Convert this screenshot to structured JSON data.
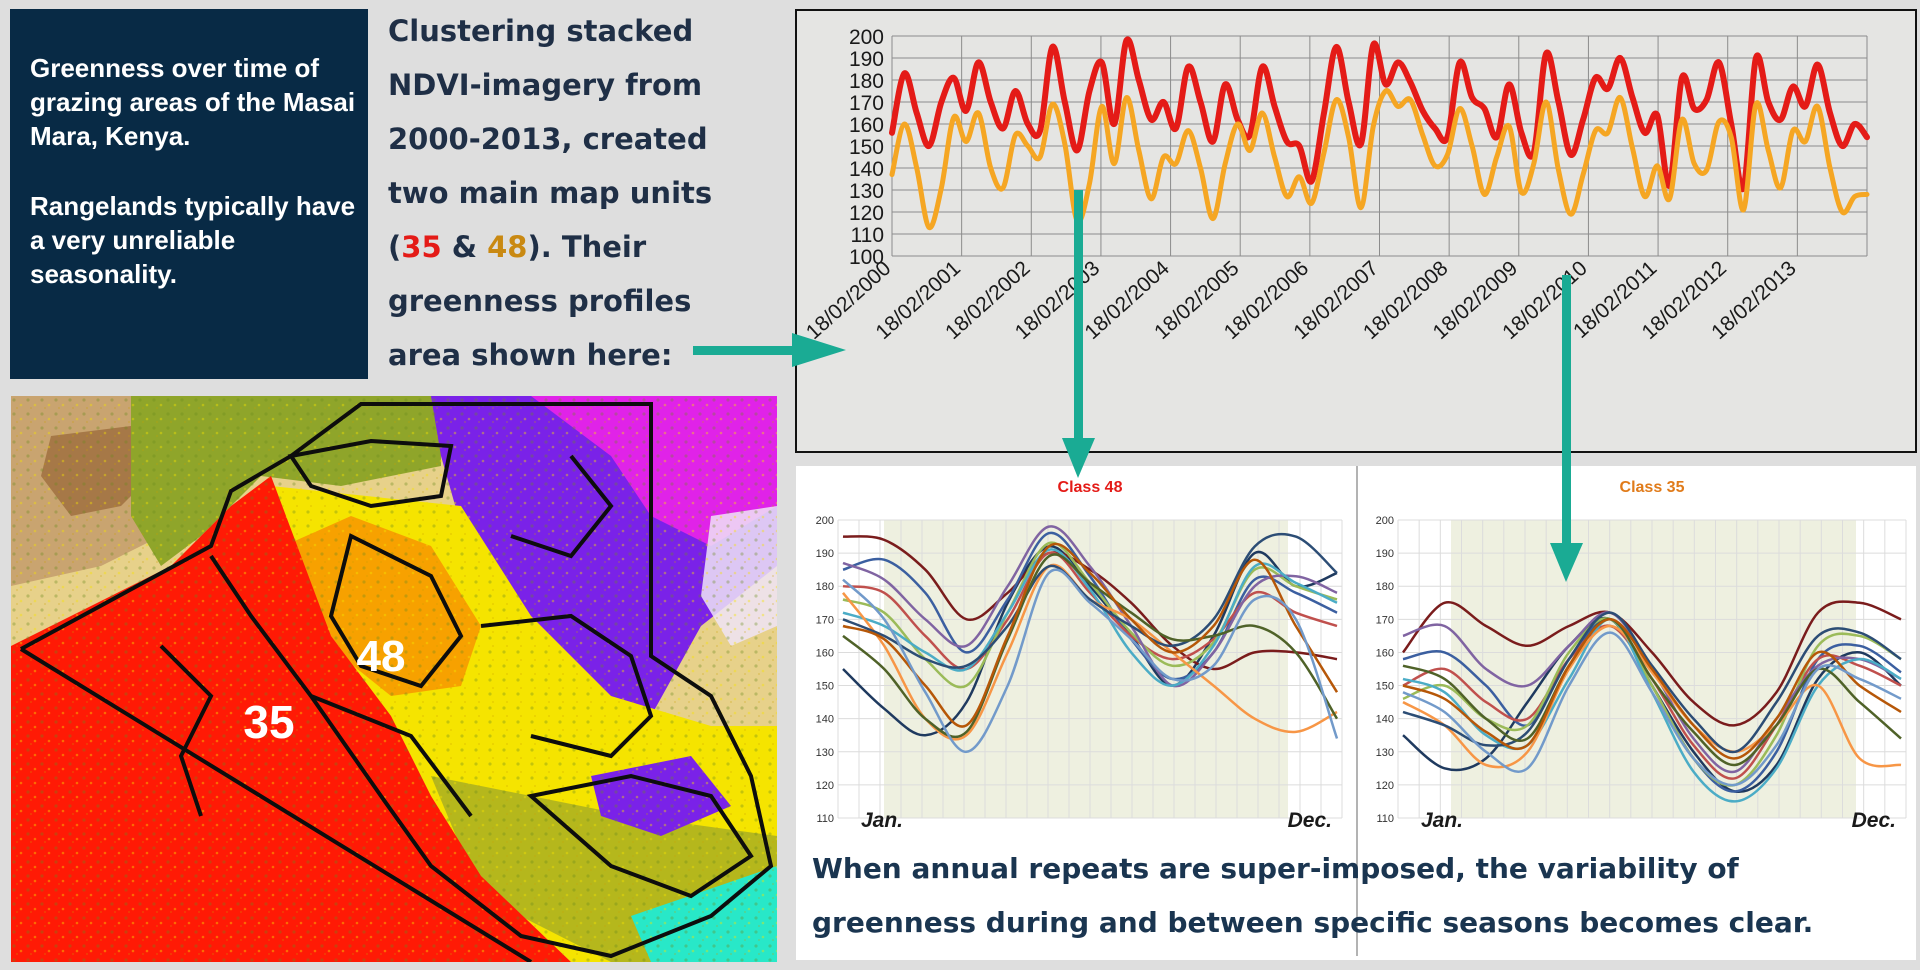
{
  "intro": {
    "paragraph1": "Greenness over time of grazing areas of the Masai Mara, Kenya.",
    "paragraph2": "Rangelands typically have a very unreliable seasonality."
  },
  "description": {
    "line1": "Clustering stacked",
    "line2": "NDVI-imagery from",
    "line3": "2000-2013, created",
    "line4": "two main map units",
    "open_paren": "(",
    "class_a": "35",
    "amp": " & ",
    "class_b": "48",
    "tail": "). Their",
    "line6": "greenness profiles",
    "line7": "area shown here:"
  },
  "colors": {
    "class48_red": "#e41b17",
    "class35_orange": "#f5a623",
    "arrow_teal": "#1aab94",
    "navy": "#082a45"
  },
  "map": {
    "label_35": "35",
    "label_48": "48"
  },
  "summary": {
    "line1": "When annual repeats are super-imposed, the variability of",
    "line2": "greenness during and between specific seasons becomes clear."
  },
  "chart_data": [
    {
      "type": "line",
      "title": "",
      "ylim": [
        100,
        200
      ],
      "yticks": [
        100,
        110,
        120,
        130,
        140,
        150,
        160,
        170,
        180,
        190,
        200
      ],
      "x_labels": [
        "18/02/2000",
        "18/02/2001",
        "18/02/2002",
        "18/02/2003",
        "18/02/2004",
        "18/02/2005",
        "18/02/2006",
        "18/02/2007",
        "18/02/2008",
        "18/02/2009",
        "18/02/2010",
        "18/02/2011",
        "18/02/2012",
        "18/02/2013"
      ],
      "grid": true,
      "series": [
        {
          "color": "#e41b17",
          "values": [
            156,
            183,
            165,
            150,
            170,
            181,
            166,
            188,
            170,
            158,
            175,
            160,
            157,
            195,
            170,
            148,
            175,
            188,
            160,
            198,
            180,
            162,
            170,
            158,
            186,
            170,
            152,
            178,
            162,
            155,
            186,
            168,
            152,
            150,
            134,
            165,
            195,
            170,
            151,
            196,
            178,
            188,
            179,
            166,
            158,
            154,
            188,
            172,
            167,
            154,
            178,
            156,
            147,
            192,
            170,
            146,
            162,
            181,
            176,
            190,
            172,
            156,
            164,
            132,
            181,
            167,
            171,
            188,
            160,
            131,
            190,
            170,
            162,
            177,
            168,
            187,
            165,
            150,
            160,
            154
          ]
        },
        {
          "color": "#f5a623",
          "values": [
            137,
            160,
            140,
            113,
            131,
            163,
            152,
            165,
            140,
            131,
            155,
            150,
            145,
            169,
            151,
            116,
            133,
            168,
            142,
            172,
            148,
            126,
            145,
            142,
            157,
            140,
            117,
            142,
            160,
            148,
            165,
            145,
            127,
            136,
            124,
            147,
            171,
            154,
            122,
            159,
            175,
            168,
            171,
            155,
            141,
            146,
            167,
            150,
            128,
            145,
            159,
            129,
            142,
            170,
            139,
            119,
            137,
            157,
            156,
            172,
            149,
            127,
            141,
            126,
            162,
            142,
            139,
            161,
            154,
            121,
            169,
            148,
            131,
            157,
            152,
            168,
            140,
            120,
            127,
            128
          ]
        }
      ]
    },
    {
      "type": "line",
      "title": "Class 48",
      "ylim": [
        110,
        200
      ],
      "yticks": [
        110,
        120,
        130,
        140,
        150,
        160,
        170,
        180,
        190,
        200
      ],
      "x_start_label": "Jan.",
      "x_end_label": "Dec.",
      "grid": true,
      "series": [
        {
          "color": "#1f3a5f",
          "values": [
            155,
            143,
            135,
            145,
            175,
            192,
            180,
            165,
            150,
            165,
            190,
            180,
            184
          ]
        },
        {
          "color": "#7a1c1c",
          "values": [
            195,
            194,
            185,
            170,
            178,
            190,
            185,
            175,
            162,
            155,
            160,
            160,
            158
          ]
        },
        {
          "color": "#3b5fa0",
          "values": [
            185,
            188,
            178,
            160,
            176,
            196,
            183,
            164,
            152,
            160,
            182,
            178,
            172
          ]
        },
        {
          "color": "#c0504d",
          "values": [
            180,
            178,
            165,
            155,
            170,
            190,
            178,
            165,
            158,
            164,
            178,
            172,
            168
          ]
        },
        {
          "color": "#9bbb59",
          "values": [
            176,
            172,
            158,
            150,
            172,
            193,
            181,
            166,
            156,
            163,
            185,
            180,
            176
          ]
        },
        {
          "color": "#8064a2",
          "values": [
            187,
            182,
            170,
            162,
            180,
            198,
            186,
            168,
            150,
            160,
            180,
            183,
            178
          ]
        },
        {
          "color": "#4bacc6",
          "values": [
            172,
            168,
            160,
            155,
            172,
            191,
            179,
            160,
            150,
            162,
            186,
            181,
            175
          ]
        },
        {
          "color": "#f79646",
          "values": [
            178,
            162,
            140,
            135,
            160,
            186,
            176,
            170,
            160,
            150,
            140,
            136,
            142
          ]
        },
        {
          "color": "#2c4d75",
          "values": [
            170,
            165,
            158,
            156,
            168,
            186,
            176,
            168,
            162,
            170,
            192,
            195,
            184
          ]
        },
        {
          "color": "#4f6228",
          "values": [
            165,
            155,
            140,
            136,
            164,
            189,
            181,
            172,
            164,
            165,
            168,
            160,
            140
          ]
        },
        {
          "color": "#b65708",
          "values": [
            168,
            164,
            150,
            138,
            165,
            192,
            184,
            170,
            160,
            168,
            188,
            168,
            148
          ]
        },
        {
          "color": "#729aca",
          "values": [
            182,
            170,
            148,
            130,
            150,
            184,
            175,
            164,
            152,
            156,
            176,
            170,
            134
          ]
        }
      ]
    },
    {
      "type": "line",
      "title": "Class 35",
      "ylim": [
        110,
        200
      ],
      "yticks": [
        110,
        120,
        130,
        140,
        150,
        160,
        170,
        180,
        190,
        200
      ],
      "x_start_label": "Jan.",
      "x_end_label": "Dec.",
      "grid": true,
      "series": [
        {
          "color": "#1f3a5f",
          "values": [
            135,
            125,
            128,
            145,
            162,
            170,
            150,
            130,
            118,
            126,
            152,
            160,
            150
          ]
        },
        {
          "color": "#7a1c1c",
          "values": [
            160,
            175,
            168,
            162,
            168,
            172,
            160,
            145,
            138,
            148,
            172,
            175,
            170
          ]
        },
        {
          "color": "#3b5fa0",
          "values": [
            158,
            160,
            150,
            138,
            158,
            170,
            150,
            128,
            118,
            130,
            158,
            162,
            154
          ]
        },
        {
          "color": "#c0504d",
          "values": [
            150,
            155,
            145,
            140,
            158,
            168,
            152,
            132,
            122,
            138,
            158,
            156,
            150
          ]
        },
        {
          "color": "#9bbb59",
          "values": [
            146,
            150,
            140,
            138,
            160,
            170,
            150,
            128,
            120,
            135,
            162,
            165,
            158
          ]
        },
        {
          "color": "#8064a2",
          "values": [
            165,
            168,
            155,
            150,
            162,
            172,
            155,
            134,
            124,
            140,
            156,
            158,
            152
          ]
        },
        {
          "color": "#4bacc6",
          "values": [
            152,
            148,
            135,
            132,
            152,
            170,
            148,
            124,
            115,
            125,
            150,
            158,
            152
          ]
        },
        {
          "color": "#f79646",
          "values": [
            145,
            138,
            126,
            130,
            155,
            168,
            154,
            138,
            130,
            138,
            150,
            128,
            126
          ]
        },
        {
          "color": "#2c4d75",
          "values": [
            142,
            138,
            132,
            136,
            158,
            172,
            156,
            140,
            130,
            145,
            165,
            166,
            158
          ]
        },
        {
          "color": "#4f6228",
          "values": [
            156,
            152,
            140,
            134,
            156,
            170,
            152,
            136,
            126,
            138,
            155,
            145,
            134
          ]
        },
        {
          "color": "#b65708",
          "values": [
            150,
            146,
            136,
            132,
            156,
            170,
            155,
            138,
            128,
            140,
            160,
            150,
            142
          ]
        },
        {
          "color": "#729aca",
          "values": [
            148,
            142,
            130,
            125,
            150,
            166,
            148,
            128,
            120,
            132,
            155,
            152,
            146
          ]
        }
      ]
    }
  ]
}
